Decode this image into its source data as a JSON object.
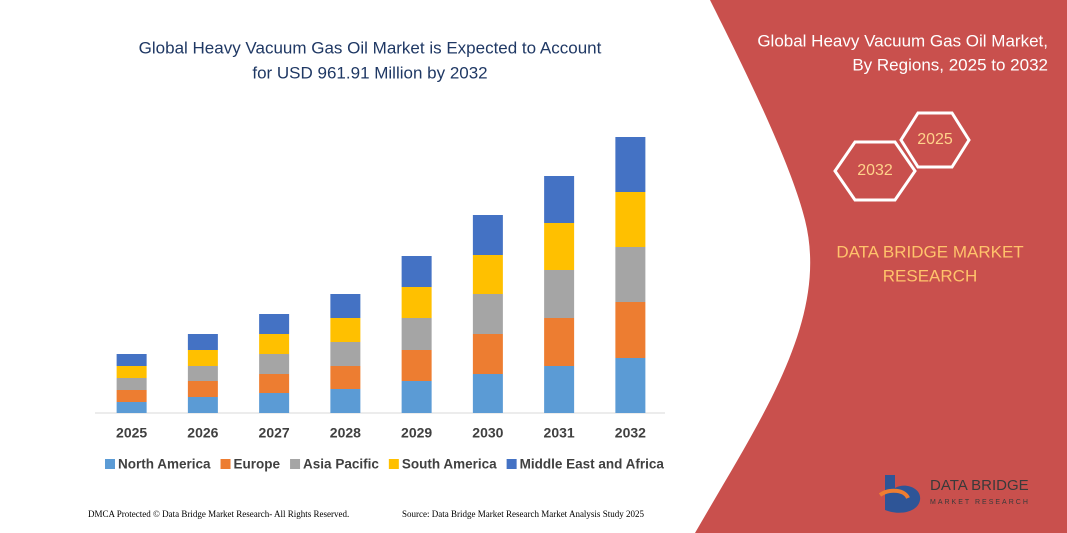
{
  "chart_data": {
    "type": "stacked_bar",
    "title": [
      "Global Heavy Vacuum Gas Oil Market is Expected to Account",
      "for USD 961.91 Million by 2032"
    ],
    "categories": [
      "2025",
      "2026",
      "2027",
      "2028",
      "2029",
      "2030",
      "2031",
      "2032"
    ],
    "series": [
      {
        "name": "North America",
        "color": "#5b9bd5",
        "values": [
          11,
          16,
          20,
          24,
          32,
          39,
          47,
          55
        ]
      },
      {
        "name": "Europe",
        "color": "#ed7d31",
        "values": [
          12,
          16,
          19,
          23,
          31,
          40,
          48,
          56
        ]
      },
      {
        "name": "Asia Pacific",
        "color": "#a5a5a5",
        "values": [
          12,
          15,
          20,
          24,
          32,
          40,
          48,
          55
        ]
      },
      {
        "name": "South America",
        "color": "#ffc000",
        "values": [
          12,
          16,
          20,
          24,
          31,
          39,
          47,
          55
        ]
      },
      {
        "name": "Middle East and Africa",
        "color": "#4472c4",
        "values": [
          12,
          16,
          20,
          24,
          31,
          40,
          47,
          55
        ]
      }
    ],
    "ylim": [
      0,
      280
    ],
    "legend": "bottom"
  },
  "panel": {
    "title_lines": [
      "Global Heavy Vacuum Gas Oil Market,",
      "By Regions, 2025 to 2032"
    ],
    "hexagons": [
      "2025",
      "2032"
    ],
    "brand_lines": [
      "DATA BRIDGE MARKET",
      "RESEARCH"
    ]
  },
  "logo": {
    "name": "DATA BRIDGE",
    "tagline": "MARKET RESEARCH"
  },
  "footer": {
    "left": "DMCA Protected © Data Bridge Market Research-  All Rights Reserved.",
    "right": "Source: Data Bridge Market Research  Market Analysis Study 2025"
  }
}
